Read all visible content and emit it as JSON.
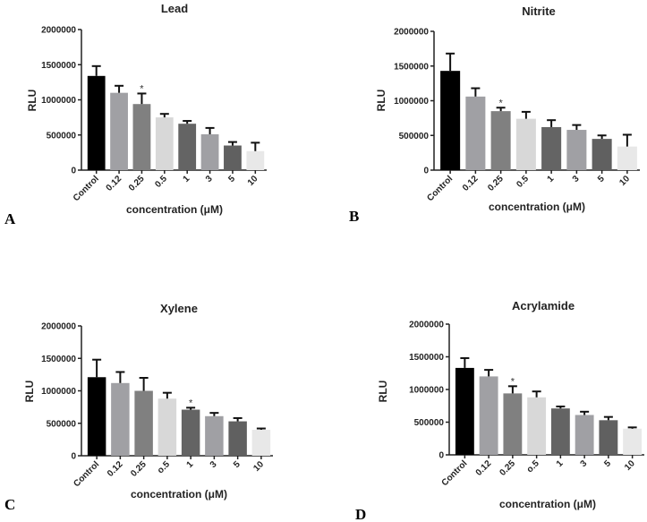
{
  "chart_data": [
    {
      "type": "bar",
      "panel_label": "A",
      "title": "Lead",
      "xlabel": "concentration (μM)",
      "ylabel": "RLU",
      "ylim": [
        0,
        2000000
      ],
      "yticks": [
        "0",
        "500000",
        "1000000",
        "1500000",
        "2000000"
      ],
      "categories": [
        "Control",
        "0.12",
        "0.25",
        "0.5",
        "1",
        "3",
        "5",
        "10"
      ],
      "values": [
        1340000,
        1100000,
        940000,
        750000,
        660000,
        510000,
        350000,
        270000
      ],
      "error": [
        140000,
        100000,
        150000,
        50000,
        40000,
        90000,
        50000,
        120000
      ],
      "significance": [
        "",
        "",
        "*",
        "",
        "",
        "",
        "",
        ""
      ],
      "colors": [
        "#000000",
        "#a0a0a4",
        "#808080",
        "#d8d8d8",
        "#646464",
        "#a0a0a4",
        "#606060",
        "#e8e8e8"
      ]
    },
    {
      "type": "bar",
      "panel_label": "B",
      "title": "Nitrite",
      "xlabel": "concentration (μM)",
      "ylabel": "RLU",
      "ylim": [
        0,
        2000000
      ],
      "yticks": [
        "0",
        "500000",
        "1000000",
        "1500000",
        "2000000"
      ],
      "categories": [
        "Control",
        "0.12",
        "0.25",
        "0.5",
        "1",
        "3",
        "5",
        "10"
      ],
      "values": [
        1430000,
        1060000,
        850000,
        740000,
        620000,
        580000,
        450000,
        340000
      ],
      "error": [
        250000,
        120000,
        50000,
        100000,
        100000,
        70000,
        50000,
        170000
      ],
      "significance": [
        "",
        "",
        "*",
        "",
        "",
        "",
        "",
        ""
      ],
      "colors": [
        "#000000",
        "#a0a0a4",
        "#808080",
        "#d8d8d8",
        "#646464",
        "#a0a0a4",
        "#606060",
        "#e8e8e8"
      ]
    },
    {
      "type": "bar",
      "panel_label": "C",
      "title": "Xylene",
      "xlabel": "concentration (μM)",
      "ylabel": "RLU",
      "ylim": [
        0,
        2000000
      ],
      "yticks": [
        "0",
        "500000",
        "1000000",
        "1500000",
        "2000000"
      ],
      "categories": [
        "Control",
        "0.12",
        "0.25",
        "o.5",
        "1",
        "3",
        "5",
        "10"
      ],
      "values": [
        1210000,
        1120000,
        1000000,
        880000,
        710000,
        610000,
        530000,
        400000
      ],
      "error": [
        270000,
        170000,
        200000,
        90000,
        30000,
        50000,
        50000,
        20000
      ],
      "significance": [
        "",
        "",
        "",
        "",
        "*",
        "",
        "",
        ""
      ],
      "colors": [
        "#000000",
        "#a0a0a4",
        "#808080",
        "#d8d8d8",
        "#646464",
        "#a0a0a4",
        "#606060",
        "#e8e8e8"
      ]
    },
    {
      "type": "bar",
      "panel_label": "D",
      "title": "Acrylamide",
      "xlabel": "concentration (μM)",
      "ylabel": "RLU",
      "ylim": [
        0,
        2000000
      ],
      "yticks": [
        "0",
        "500000",
        "1000000",
        "1500000",
        "2000000"
      ],
      "categories": [
        "Control",
        "0.12",
        "0.25",
        "o.5",
        "1",
        "3",
        "5",
        "10"
      ],
      "values": [
        1330000,
        1200000,
        940000,
        880000,
        710000,
        610000,
        530000,
        400000
      ],
      "error": [
        150000,
        100000,
        110000,
        90000,
        30000,
        50000,
        50000,
        20000
      ],
      "significance": [
        "",
        "",
        "*",
        "",
        "",
        "",
        "",
        ""
      ],
      "colors": [
        "#000000",
        "#a0a0a4",
        "#808080",
        "#d8d8d8",
        "#646464",
        "#a0a0a4",
        "#606060",
        "#e8e8e8"
      ]
    }
  ]
}
